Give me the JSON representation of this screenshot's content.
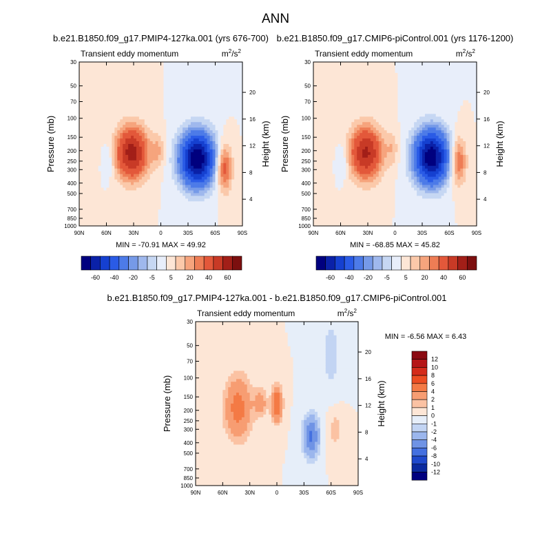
{
  "figure_title": "ANN",
  "colorbar_levels_main": [
    "-60",
    "-40",
    "-20",
    "-5",
    "5",
    "20",
    "40",
    "60"
  ],
  "colorbar_levels_diff": [
    "12",
    "10",
    "8",
    "6",
    "4",
    "2",
    "1",
    "0",
    "-1",
    "-2",
    "-4",
    "-6",
    "-8",
    "-10",
    "-12"
  ],
  "colors": {
    "main_palette": [
      "#00007f",
      "#0a21a8",
      "#1540d0",
      "#2a5be6",
      "#4d7be8",
      "#769ae8",
      "#9fb8ed",
      "#c6d7f3",
      "#e8eefa",
      "#fde6d6",
      "#fbc9aa",
      "#f6a47d",
      "#ee7d55",
      "#e3583a",
      "#c83a26",
      "#a21f18",
      "#7c0f0f"
    ],
    "diff_palette": [
      "#8b0a12",
      "#b51516",
      "#d42b1a",
      "#ec4d22",
      "#f47a45",
      "#f79d72",
      "#fbc2a3",
      "#fde6d6",
      "#e6eef9",
      "#c2d4f3",
      "#9bb6ed",
      "#6f93e5",
      "#4470e0",
      "#1f49cc",
      "#0b2aa0",
      "#00007f"
    ],
    "axis": "#000000",
    "background": "#ffffff"
  },
  "chart_data": [
    {
      "type": "heatmap",
      "panel": "top-left",
      "title": "b.e21.B1850.f09_g17.PMIP4-127ka.001 (yrs 676-700)",
      "left_label": "Transient eddy momentum",
      "unit_label": "m",
      "unit_sup": "2",
      "unit_rest": "/s",
      "unit_sup2": "2",
      "xlabel": "",
      "ylabel": "Pressure (mb)",
      "ylabel_right": "Height (km)",
      "x_ticks": [
        "90N",
        "60N",
        "30N",
        "0",
        "30S",
        "60S",
        "90S"
      ],
      "x_range": [
        90,
        -90
      ],
      "y_ticks": [
        "30",
        "50",
        "70",
        "100",
        "150",
        "200",
        "250",
        "300",
        "400",
        "500",
        "700",
        "850",
        "1000"
      ],
      "y_tick_values": [
        30,
        50,
        70,
        100,
        150,
        200,
        250,
        300,
        400,
        500,
        700,
        850,
        1000
      ],
      "y_range": [
        30,
        1000
      ],
      "y_scale": "log",
      "right_ticks": [
        "20",
        "16",
        "12",
        "8",
        "4"
      ],
      "min_label": "MIN = -70.91",
      "max_label": "MAX =  49.92",
      "min": -70.91,
      "max": 49.92,
      "features": [
        {
          "lat": 32,
          "p": 210,
          "value": 45,
          "sx": 12,
          "sy": 0.38
        },
        {
          "lat": -40,
          "p": 240,
          "value": -70,
          "sx": 13,
          "sy": 0.4
        },
        {
          "lat": -70,
          "p": 290,
          "value": 25,
          "sx": 6,
          "sy": 0.35
        },
        {
          "lat": 3,
          "p": 200,
          "value": 10,
          "sx": 5,
          "sy": 0.25
        },
        {
          "lat": 58,
          "p": 250,
          "value": -8,
          "sx": 4,
          "sy": 0.25
        }
      ]
    },
    {
      "type": "heatmap",
      "panel": "top-right",
      "title": "b.e21.B1850.f09_g17.CMIP6-piControl.001 (yrs 1176-1200)",
      "left_label": "Transient eddy momentum",
      "unit_label": "m",
      "unit_sup": "2",
      "unit_rest": "/s",
      "unit_sup2": "2",
      "xlabel": "",
      "ylabel": "Pressure (mb)",
      "ylabel_right": "Height (km)",
      "x_ticks": [
        "90N",
        "60N",
        "30N",
        "0",
        "30S",
        "60S",
        "90S"
      ],
      "x_range": [
        90,
        -90
      ],
      "y_ticks": [
        "30",
        "50",
        "70",
        "100",
        "150",
        "200",
        "250",
        "300",
        "400",
        "500",
        "700",
        "850",
        "1000"
      ],
      "y_tick_values": [
        30,
        50,
        70,
        100,
        150,
        200,
        250,
        300,
        400,
        500,
        700,
        850,
        1000
      ],
      "y_range": [
        30,
        1000
      ],
      "y_scale": "log",
      "right_ticks": [
        "20",
        "16",
        "12",
        "8",
        "4"
      ],
      "min_label": "MIN = -68.85",
      "max_label": "MAX =  45.82",
      "min": -68.85,
      "max": 45.82,
      "features": [
        {
          "lat": 32,
          "p": 210,
          "value": 42,
          "sx": 12,
          "sy": 0.38
        },
        {
          "lat": -40,
          "p": 230,
          "value": -68,
          "sx": 13,
          "sy": 0.4
        },
        {
          "lat": -70,
          "p": 250,
          "value": 22,
          "sx": 6,
          "sy": 0.35
        },
        {
          "lat": 3,
          "p": 190,
          "value": 8,
          "sx": 5,
          "sy": 0.25
        },
        {
          "lat": 58,
          "p": 250,
          "value": -8,
          "sx": 4,
          "sy": 0.25
        }
      ]
    },
    {
      "type": "heatmap",
      "panel": "bottom",
      "title": "b.e21.B1850.f09_g17.PMIP4-127ka.001 - b.e21.B1850.f09_g17.CMIP6-piControl.001",
      "left_label": "Transient eddy momentum",
      "unit_label": "m",
      "unit_sup": "2",
      "unit_rest": "/s",
      "unit_sup2": "2",
      "xlabel": "",
      "ylabel": "Pressure (mb)",
      "ylabel_right": "Height (km)",
      "x_ticks": [
        "90N",
        "60N",
        "30N",
        "0",
        "30S",
        "60S",
        "90S"
      ],
      "x_range": [
        90,
        -90
      ],
      "y_ticks": [
        "30",
        "50",
        "70",
        "100",
        "150",
        "200",
        "250",
        "300",
        "400",
        "500",
        "700",
        "850",
        "1000"
      ],
      "y_tick_values": [
        30,
        50,
        70,
        100,
        150,
        200,
        250,
        300,
        400,
        500,
        700,
        850,
        1000
      ],
      "y_range": [
        30,
        1000
      ],
      "y_scale": "log",
      "right_ticks": [
        "20",
        "16",
        "12",
        "8",
        "4"
      ],
      "min_label": "MIN =  -6.56",
      "max_label": "MAX =   6.43",
      "min": -6.56,
      "max": 6.43,
      "features": [
        {
          "lat": 43,
          "p": 190,
          "value": 5,
          "sx": 10,
          "sy": 0.45
        },
        {
          "lat": 0,
          "p": 175,
          "value": 6.4,
          "sx": 4,
          "sy": 0.25
        },
        {
          "lat": 18,
          "p": 170,
          "value": 3,
          "sx": 5,
          "sy": 0.2
        },
        {
          "lat": -38,
          "p": 350,
          "value": -6.5,
          "sx": 6,
          "sy": 0.3
        },
        {
          "lat": -60,
          "p": 60,
          "value": -1.5,
          "sx": 8,
          "sy": 0.6
        },
        {
          "lat": -65,
          "p": 300,
          "value": 1.5,
          "sx": 6,
          "sy": 0.3
        }
      ]
    }
  ]
}
